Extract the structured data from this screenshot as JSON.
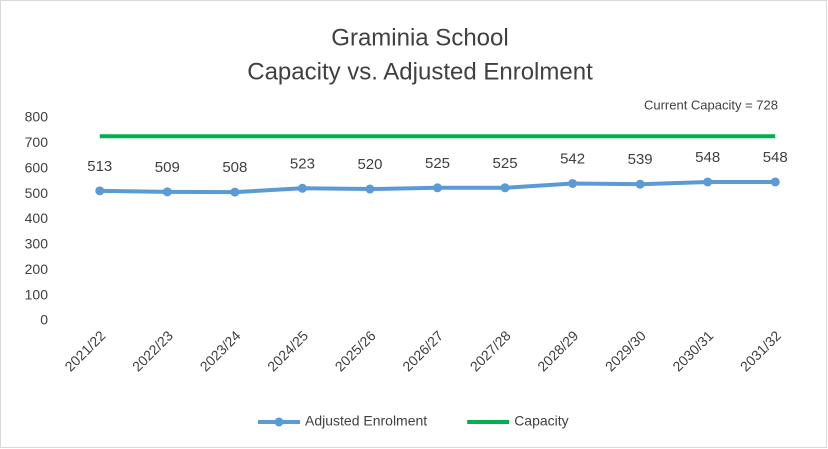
{
  "chart_data": {
    "type": "line",
    "title": "Graminia School",
    "subtitle": "Capacity vs. Adjusted Enrolment",
    "annotation": "Current Capacity = 728",
    "categories": [
      "2021/22",
      "2022/23",
      "2023/24",
      "2024/25",
      "2025/26",
      "2026/27",
      "2027/28",
      "2028/29",
      "2029/30",
      "2030/31",
      "2031/32"
    ],
    "series": [
      {
        "name": "Adjusted Enrolment",
        "color": "#5b9bd5",
        "markers": true,
        "data_labels": true,
        "values": [
          513,
          509,
          508,
          523,
          520,
          525,
          525,
          542,
          539,
          548,
          548
        ]
      },
      {
        "name": "Capacity",
        "color": "#00b050",
        "markers": false,
        "data_labels": false,
        "values": [
          728,
          728,
          728,
          728,
          728,
          728,
          728,
          728,
          728,
          728,
          728
        ]
      }
    ],
    "ylim": [
      0,
      800
    ],
    "yticks": [
      0,
      100,
      200,
      300,
      400,
      500,
      600,
      700,
      800
    ],
    "grid": false,
    "legend": "bottom"
  }
}
